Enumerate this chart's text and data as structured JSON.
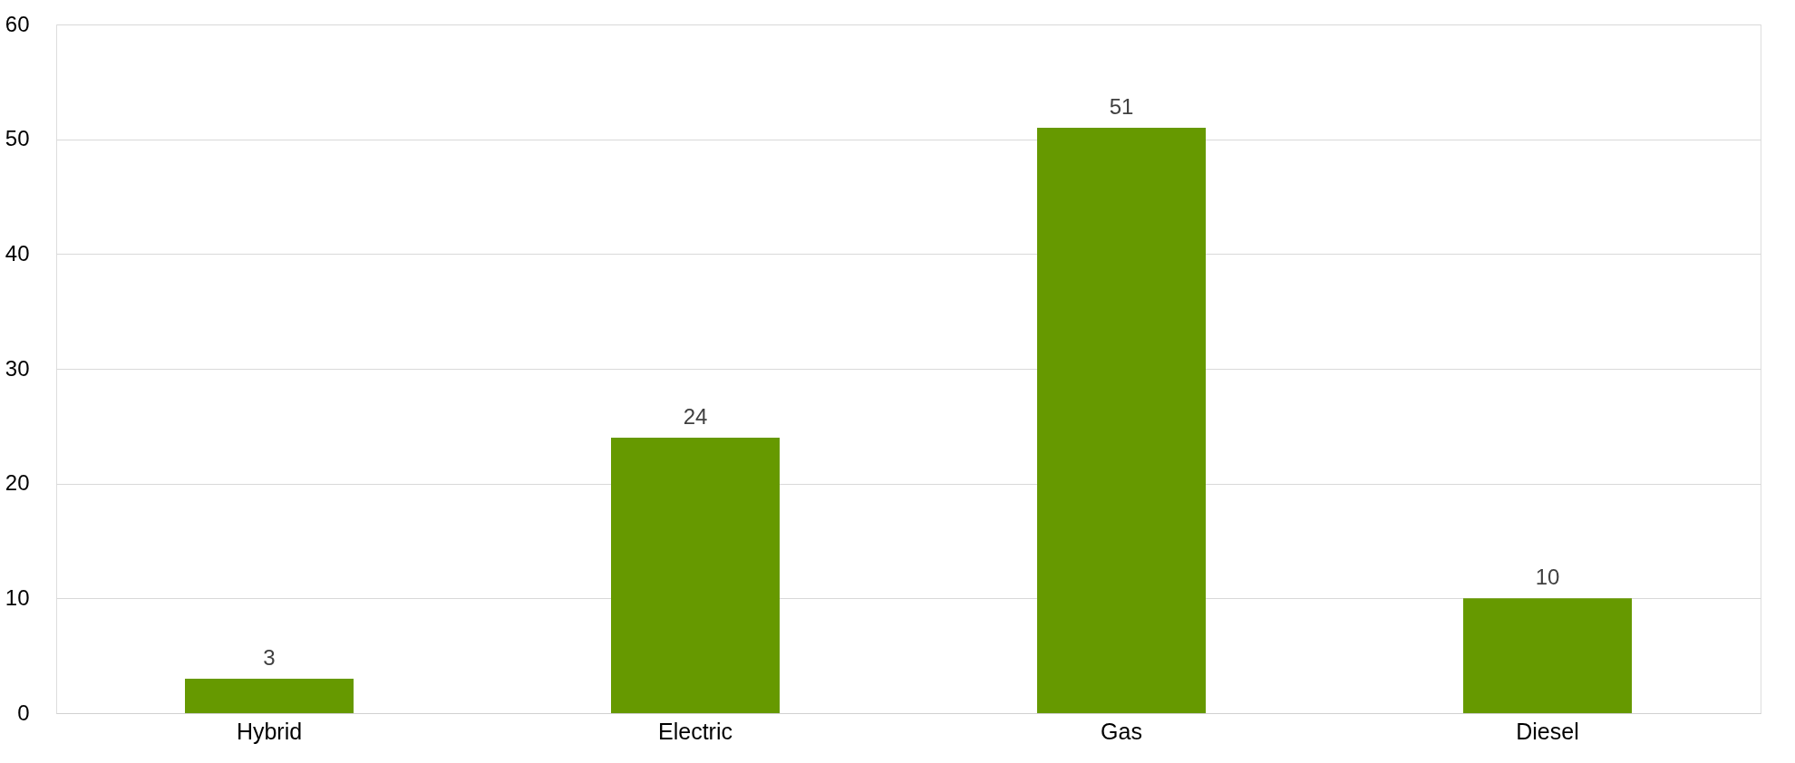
{
  "chart_data": {
    "type": "bar",
    "categories": [
      "Hybrid",
      "Electric",
      "Gas",
      "Diesel"
    ],
    "values": [
      3,
      24,
      51,
      10
    ],
    "color": "#669900",
    "ylim": [
      0,
      60
    ],
    "yticks": [
      0,
      10,
      20,
      30,
      40,
      50,
      60
    ],
    "grid": "y",
    "data_labels": true
  }
}
